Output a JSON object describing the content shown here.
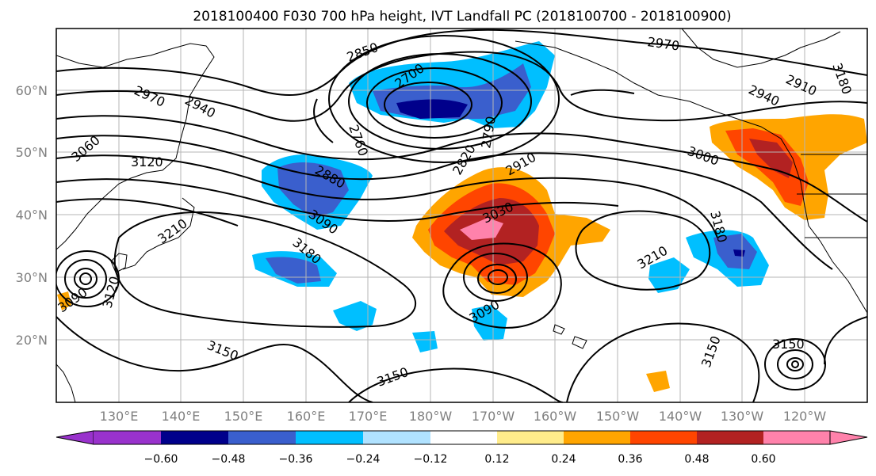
{
  "figure": {
    "title": "2018100400 F030 700 hPa height, IVT Landfall PC (2018100700 - 2018100900)"
  },
  "map": {
    "lat_ticks": [
      "60°N",
      "50°N",
      "40°N",
      "30°N",
      "20°N"
    ],
    "lon_ticks": [
      "130°E",
      "140°E",
      "150°E",
      "160°E",
      "170°E",
      "180°W",
      "170°W",
      "160°W",
      "150°W",
      "140°W",
      "130°W",
      "120°W"
    ],
    "contour_labels": [
      "2850",
      "2970",
      "2700",
      "2760",
      "2790",
      "2820",
      "2910",
      "2970",
      "2940",
      "3060",
      "3120",
      "2880",
      "3090",
      "3030",
      "3000",
      "2910",
      "2940",
      "3210",
      "3180",
      "3210",
      "3180",
      "3120",
      "3090",
      "3090",
      "3150",
      "3150",
      "3150",
      "3150",
      "3180"
    ],
    "fill_colors": {
      "purple": "#9932cc",
      "navy": "#00008b",
      "blue": "#3a5fcd",
      "deep_sky": "#00bfff",
      "light_sky": "#b0e2ff",
      "yellow": "#ffec8b",
      "orange": "#ffa500",
      "orange_red": "#ff4500",
      "firebrick": "#b22222",
      "pink": "#ff82ab"
    }
  },
  "colorbar": {
    "tick_labels": [
      "−0.60",
      "−0.48",
      "−0.36",
      "−0.24",
      "−0.12",
      "0.12",
      "0.24",
      "0.36",
      "0.48",
      "0.60"
    ],
    "colors": [
      "#9932cc",
      "#00008b",
      "#3a5fcd",
      "#00bfff",
      "#b0e2ff",
      "#ffffff",
      "#ffec8b",
      "#ffa500",
      "#ff4500",
      "#b22222",
      "#ff82ab"
    ]
  }
}
